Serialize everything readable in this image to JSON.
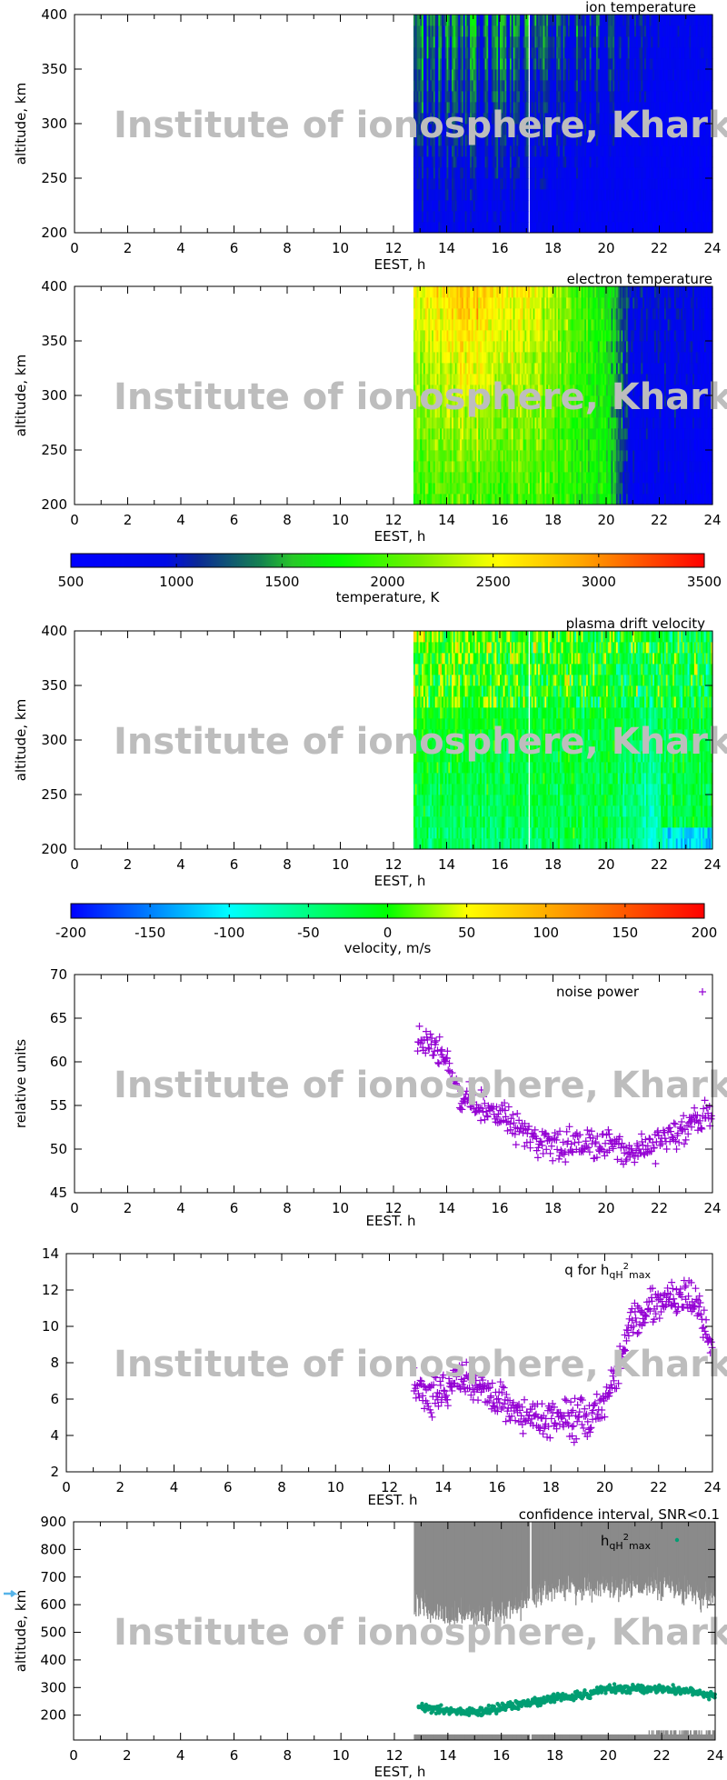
{
  "watermark": "Institute of ionosphere, Kharkiv",
  "colors": {
    "scatter_purple": "#9400d3",
    "hqh_teal": "#009e73",
    "confidence_gray": "#8a8a8a",
    "arrow_blue": "#56b4e9"
  },
  "chart_data": [
    {
      "id": "ion_temperature",
      "type": "heatmap",
      "title": "ion temperature",
      "xlabel": "EEST, h",
      "ylabel": "altitude, km",
      "xlim": [
        0,
        24
      ],
      "ylim": [
        200,
        400
      ],
      "xticks": [
        "0",
        "2",
        "4",
        "6",
        "8",
        "10",
        "12",
        "14",
        "16",
        "18",
        "20",
        "22",
        "24"
      ],
      "yticks": [
        "200",
        "250",
        "300",
        "350",
        "400"
      ],
      "data_start_hour": 12.75,
      "data_gap_hour": 17.1,
      "colorbar": "temperature",
      "profile": [
        {
          "hour": 13,
          "value_200km": 800,
          "value_400km": 1400
        },
        {
          "hour": 16,
          "value_200km": 800,
          "value_400km": 1300
        },
        {
          "hour": 19,
          "value_200km": 700,
          "value_400km": 1200
        },
        {
          "hour": 22,
          "value_200km": 600,
          "value_400km": 900
        },
        {
          "hour": 24,
          "value_200km": 600,
          "value_400km": 800
        }
      ]
    },
    {
      "id": "electron_temperature",
      "type": "heatmap",
      "title": "electron temperature",
      "xlabel": "EEST, h",
      "ylabel": "altitude, km",
      "xlim": [
        0,
        24
      ],
      "ylim": [
        200,
        400
      ],
      "xticks": [
        "0",
        "2",
        "4",
        "6",
        "8",
        "10",
        "12",
        "14",
        "16",
        "18",
        "20",
        "22",
        "24"
      ],
      "yticks": [
        "200",
        "250",
        "300",
        "350",
        "400"
      ],
      "data_start_hour": 12.75,
      "colorbar": "temperature",
      "profile": [
        {
          "hour": 13,
          "value_200km": 1900,
          "value_400km": 2500
        },
        {
          "hour": 15,
          "value_200km": 2000,
          "value_400km": 2800
        },
        {
          "hour": 18,
          "value_200km": 1900,
          "value_400km": 2300
        },
        {
          "hour": 20,
          "value_200km": 1700,
          "value_400km": 1700
        },
        {
          "hour": 21,
          "value_200km": 800,
          "value_400km": 1000
        },
        {
          "hour": 24,
          "value_200km": 600,
          "value_400km": 800
        }
      ]
    },
    {
      "id": "temperature",
      "type": "colorbar",
      "label": "temperature, K",
      "range": [
        500,
        3500
      ],
      "ticks": [
        "500",
        "1000",
        "1500",
        "2000",
        "2500",
        "3000",
        "3500"
      ]
    },
    {
      "id": "plasma_drift_velocity",
      "type": "heatmap",
      "title": "plasma drift velocity",
      "xlabel": "EEST, h",
      "ylabel": "altitude, km",
      "xlim": [
        0,
        24
      ],
      "ylim": [
        200,
        400
      ],
      "xticks": [
        "0",
        "2",
        "4",
        "6",
        "8",
        "10",
        "12",
        "14",
        "16",
        "18",
        "20",
        "22",
        "24"
      ],
      "yticks": [
        "200",
        "250",
        "300",
        "350",
        "400"
      ],
      "data_start_hour": 12.75,
      "data_gap_hour": 17.1,
      "colorbar": "velocity",
      "profile": [
        {
          "hour": 13,
          "value_200km": -40,
          "value_400km": 20
        },
        {
          "hour": 16,
          "value_200km": -40,
          "value_400km": 10
        },
        {
          "hour": 20,
          "value_200km": -30,
          "value_400km": -10
        },
        {
          "hour": 23,
          "value_200km": -120,
          "value_400km": -10
        }
      ]
    },
    {
      "id": "velocity",
      "type": "colorbar",
      "label": "velocity, m/s",
      "range": [
        -200,
        200
      ],
      "ticks": [
        "-200",
        "-150",
        "-100",
        "-50",
        "0",
        "50",
        "100",
        "150",
        "200"
      ]
    },
    {
      "id": "noise_power",
      "type": "scatter",
      "legend": "noise power",
      "legend_position": "top-right",
      "xlabel": "EEST. h",
      "ylabel": "relative units",
      "xlim": [
        0,
        24
      ],
      "ylim": [
        45,
        70
      ],
      "xticks": [
        "0",
        "2",
        "4",
        "6",
        "8",
        "10",
        "12",
        "14",
        "16",
        "18",
        "20",
        "22",
        "24"
      ],
      "yticks": [
        "45",
        "50",
        "55",
        "60",
        "65",
        "70"
      ],
      "trend": {
        "x": [
          12.9,
          13.5,
          14,
          14.5,
          15,
          16,
          17,
          18,
          19,
          20,
          21,
          22,
          23,
          24
        ],
        "y": [
          62,
          62,
          60,
          56,
          55,
          54,
          52,
          50.5,
          50.5,
          50.5,
          49.5,
          51,
          52.5,
          54
        ]
      },
      "spread": 1.3
    },
    {
      "id": "q",
      "type": "scatter",
      "legend": "q for h",
      "legend_sub": "qH",
      "legend_sup": "2",
      "legend_sub2": "max",
      "legend_position": "top-right",
      "xlabel": "EEST. h",
      "ylabel": "",
      "xlim": [
        0,
        24
      ],
      "ylim": [
        2,
        14
      ],
      "xticks": [
        "0",
        "2",
        "4",
        "6",
        "8",
        "10",
        "12",
        "14",
        "16",
        "18",
        "20",
        "22",
        "24"
      ],
      "yticks": [
        "2",
        "4",
        "6",
        "8",
        "10",
        "12",
        "14"
      ],
      "trend": {
        "x": [
          12.9,
          13.5,
          14,
          14.5,
          15,
          16,
          17,
          18,
          19,
          19.8,
          20.3,
          21,
          22,
          23,
          23.5,
          24
        ],
        "y": [
          7.2,
          6,
          6.5,
          7.2,
          7,
          6,
          5,
          5,
          4.8,
          5.3,
          7,
          10.3,
          11.3,
          11.6,
          11,
          8.5
        ]
      },
      "spread": 0.7
    },
    {
      "id": "h_qH2max",
      "type": "scatter",
      "title": "confidence interval, SNR<0.1",
      "legend": "h",
      "legend_sub": "qH",
      "legend_sup": "2",
      "legend_sub2": "max",
      "legend_position": "top-right",
      "xlabel": "EEST, h",
      "ylabel": "altitude, km",
      "xlim": [
        0,
        24
      ],
      "ylim": [
        110,
        900
      ],
      "xticks": [
        "0",
        "2",
        "4",
        "6",
        "8",
        "10",
        "12",
        "14",
        "16",
        "18",
        "20",
        "22",
        "24"
      ],
      "yticks": [
        "200",
        "300",
        "400",
        "500",
        "600",
        "700",
        "800",
        "900"
      ],
      "trend": {
        "x": [
          12.9,
          14,
          15,
          16,
          17,
          18,
          19,
          20,
          21,
          22,
          23,
          24
        ],
        "y": [
          235,
          215,
          210,
          225,
          245,
          260,
          270,
          295,
          295,
          295,
          285,
          270
        ]
      },
      "spread": 10,
      "confidence_lower": {
        "x": [
          12.75,
          13.5,
          14,
          15,
          16,
          17,
          17.5,
          18,
          20,
          22,
          23,
          24
        ],
        "y": [
          620,
          580,
          560,
          570,
          560,
          620,
          650,
          660,
          660,
          670,
          650,
          620
        ]
      },
      "confidence_upper": 900,
      "bottom_band": [
        110,
        130
      ],
      "data_gap_hour": 17.1
    }
  ]
}
